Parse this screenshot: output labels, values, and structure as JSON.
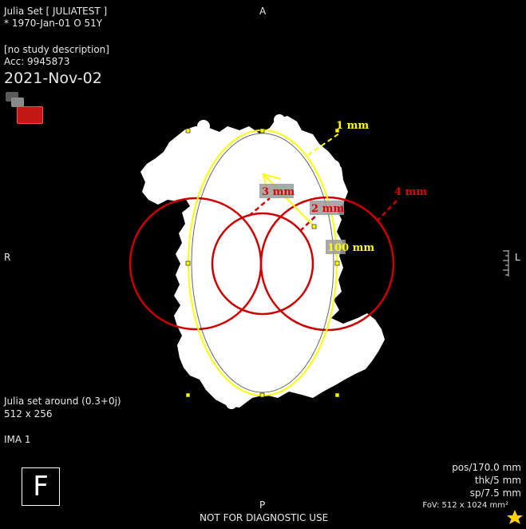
{
  "patient": {
    "name_line": "Julia Set [ JULIATEST ]",
    "dob_line": "* 1970-Jan-01 O 51Y"
  },
  "study": {
    "description": "[no study description]",
    "accession": "Acc: 9945873",
    "date": "2021-Nov-02"
  },
  "series": {
    "description": "Julia set around (0.3+0j)",
    "matrix": "512 x 256",
    "image_label": "IMA 1"
  },
  "orientation": {
    "top": "A",
    "bottom": "P",
    "left": "R",
    "right": "L"
  },
  "frame_marker": "F",
  "geometry_info": {
    "position": "pos/170.0 mm",
    "thickness": "thk/5 mm",
    "spacing": "sp/7.5 mm",
    "fov": "FoV: 512 x 1024 mm²"
  },
  "footer": "NOT FOR DIAGNOSTIC USE",
  "annotations": [
    {
      "label": "1 mm",
      "color": "#ffff00",
      "shape": "ellipse"
    },
    {
      "label": "4 mm",
      "color": "#dd0000",
      "shape": "circle-large-right"
    },
    {
      "label": "3 mm",
      "color": "#dd0000",
      "shape": "circle-center"
    },
    {
      "label": "2 mm",
      "color": "#dd0000",
      "shape": "circle-right"
    },
    {
      "label": "100 mm",
      "color": "#ffff00",
      "shape": "arrow"
    }
  ],
  "colors": {
    "annotation_yellow": "#ffff00",
    "annotation_red": "#cc0000",
    "text": "#e8e8e8",
    "star": "#ffd200"
  },
  "icons": {
    "tools": "toolbox-icon",
    "favorite": "star-icon",
    "scale": "ruler-scale-icon"
  }
}
